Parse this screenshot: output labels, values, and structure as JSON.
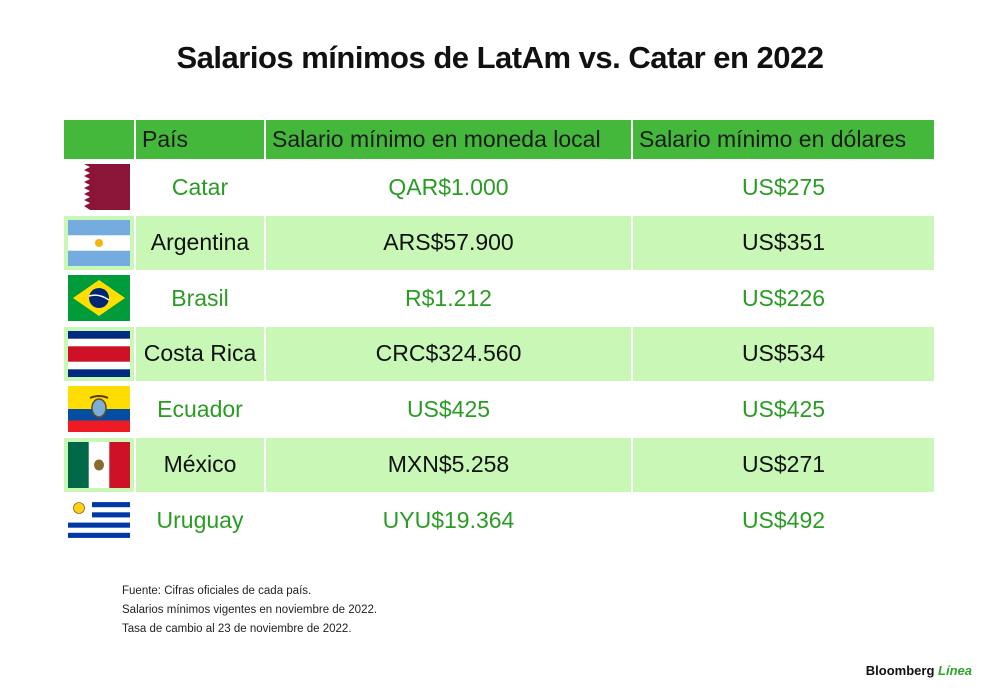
{
  "title": "Salarios mínimos de LatAm vs. Catar en 2022",
  "table": {
    "header": [
      "País",
      "Salario mínimo en moneda local",
      "Salario mínimo en dólares"
    ],
    "rows": [
      [
        "Catar",
        "QAR$1.000",
        "US$275"
      ],
      [
        "Argentina",
        "ARS$57.900",
        "US$351"
      ],
      [
        "Brasil",
        "R$1.212",
        "US$226"
      ],
      [
        "Costa Rica",
        "CRC$324.560",
        "US$534"
      ],
      [
        "Ecuador",
        "US$425",
        "US$425"
      ],
      [
        "México",
        "MXN$5.258",
        "US$271"
      ],
      [
        "Uruguay",
        "UYU$19.364",
        "US$492"
      ]
    ]
  },
  "notes": [
    "Fuente: Cifras oficiales de cada país.",
    "Salarios mínimos vigentes en noviembre de 2022.",
    "Tasa de cambio al 23 de noviembre de 2022."
  ],
  "brand": {
    "name": "Bloomberg",
    "sub": "Línea"
  }
}
